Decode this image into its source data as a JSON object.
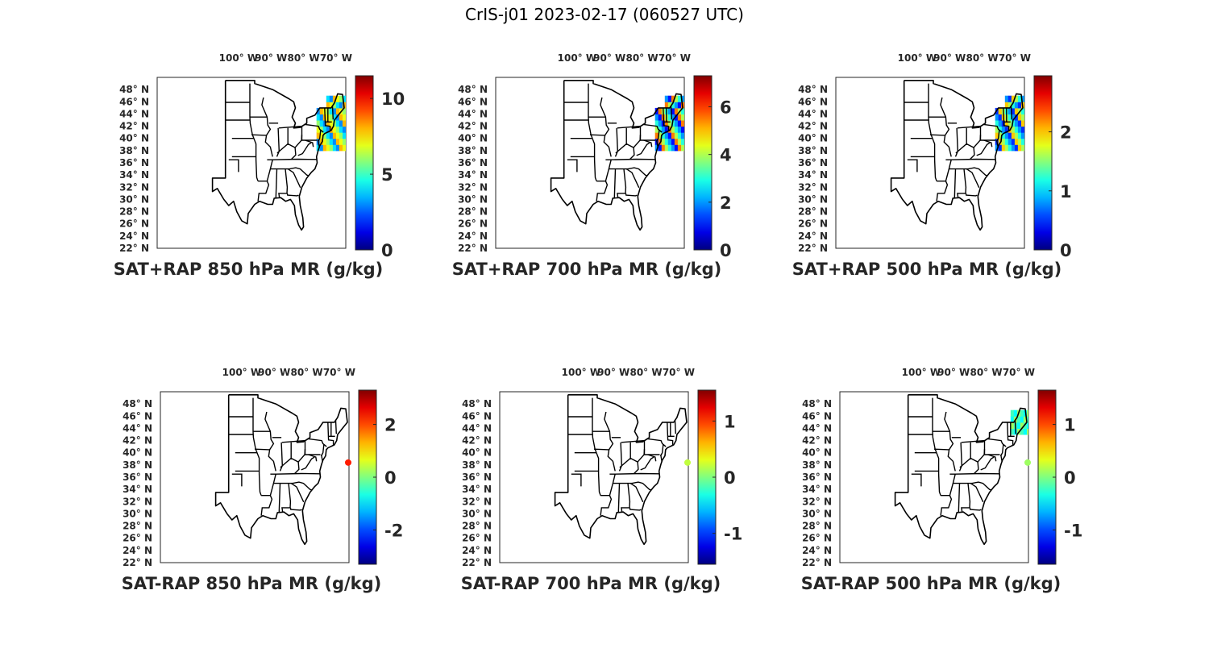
{
  "figure_title": "CrIS-j01 2023-02-17 (060527 UTC)",
  "lon_labels": [
    "100° W",
    "90° W",
    "80° W",
    "70° W"
  ],
  "lat_labels": [
    "48° N",
    "46° N",
    "44° N",
    "42° N",
    "40° N",
    "38° N",
    "36° N",
    "34° N",
    "32° N",
    "30° N",
    "28° N",
    "26° N",
    "24° N",
    "22° N"
  ],
  "colormap": "jet",
  "panels": [
    {
      "id": "sat-rap-sum-850",
      "title": "SAT+RAP 850 hPa MR (g/kg)",
      "colorbar": {
        "min": 0,
        "max": 11.5,
        "ticks": [
          0,
          5,
          10
        ]
      },
      "data_region": "northeast-us",
      "data_values": [
        8,
        7,
        6,
        4,
        3
      ]
    },
    {
      "id": "sat-rap-sum-700",
      "title": "SAT+RAP 700 hPa MR (g/kg)",
      "colorbar": {
        "min": 0,
        "max": 7.3,
        "ticks": [
          0,
          2,
          4,
          6
        ]
      },
      "data_region": "northeast-us",
      "data_values": [
        5.5,
        4,
        3,
        2,
        1
      ]
    },
    {
      "id": "sat-rap-sum-500",
      "title": "SAT+RAP 500 hPa MR (g/kg)",
      "colorbar": {
        "min": 0,
        "max": 2.95,
        "ticks": [
          0,
          1,
          2
        ]
      },
      "data_region": "northeast-us",
      "data_values": [
        2,
        1.6,
        1.2,
        0.8,
        0.5
      ]
    },
    {
      "id": "sat-rap-diff-850",
      "title": "SAT-RAP 850 hPa MR (g/kg)",
      "colorbar": {
        "min": -3.3,
        "max": 3.3,
        "ticks": [
          -2,
          0,
          2
        ]
      },
      "marker_value": 2.3
    },
    {
      "id": "sat-rap-diff-700",
      "title": "SAT-RAP 700 hPa MR (g/kg)",
      "colorbar": {
        "min": -1.55,
        "max": 1.55,
        "ticks": [
          -1,
          0,
          1
        ]
      },
      "marker_value": 0.2
    },
    {
      "id": "sat-rap-diff-500",
      "title": "SAT-RAP 500 hPa MR (g/kg)",
      "colorbar": {
        "min": -1.65,
        "max": 1.65,
        "ticks": [
          -1,
          0,
          1
        ]
      },
      "marker_value": 0.1,
      "data_region": "new-england",
      "data_values": [
        0.1,
        -0.2,
        -0.4
      ]
    }
  ]
}
